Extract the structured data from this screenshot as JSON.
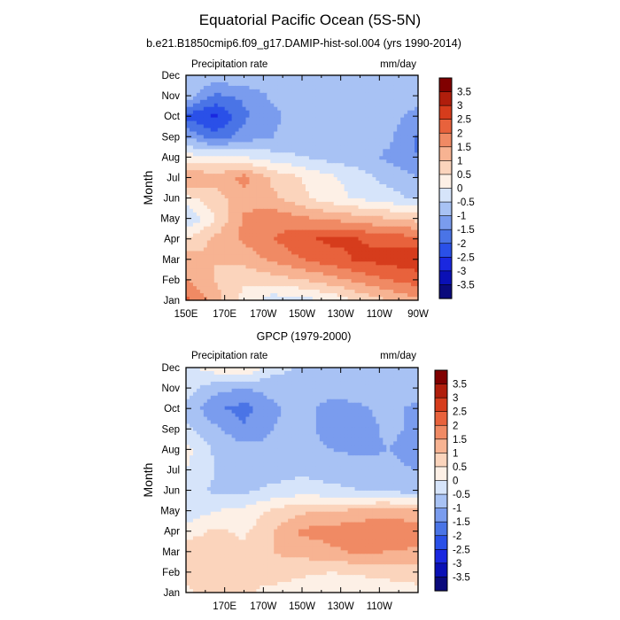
{
  "figure": {
    "title": "Equatorial Pacific Ocean (5S-5N)",
    "colorbar_labels": [
      "3.5",
      "3",
      "2.5",
      "2",
      "1.5",
      "1",
      "0.5",
      "0",
      "-0.5",
      "-1",
      "-1.5",
      "-2",
      "-2.5",
      "-3",
      "-3.5"
    ],
    "palette": {
      "levels": [
        -3.5,
        -3,
        -2.5,
        -2,
        -1.5,
        -1,
        -0.5,
        0,
        0.5,
        1,
        1.5,
        2,
        2.5,
        3,
        3.5
      ],
      "colors": [
        "#0a0a7c",
        "#0a10b5",
        "#1a28e0",
        "#2a50e8",
        "#4a74e6",
        "#7a9cee",
        "#a8c2f4",
        "#d6e4fa",
        "#fdf0e6",
        "#fbd4bc",
        "#f7b392",
        "#f08a64",
        "#e8623c",
        "#d63c1c",
        "#b01e0c",
        "#800000"
      ]
    }
  },
  "chart_data": [
    {
      "type": "heatmap",
      "title": "b.e21.B1850cmip6.f09_g17.DAMIP-hist-sol.004 (yrs 1990-2014)",
      "left_string": "Precipitation rate",
      "right_string": "mm/day",
      "ylabel": "Month",
      "x_tick_labels": [
        "150E",
        "170E",
        "170W",
        "150W",
        "130W",
        "110W",
        "90W"
      ],
      "y_tick_labels": [
        "Jan",
        "Feb",
        "Mar",
        "Apr",
        "May",
        "Jun",
        "Jul",
        "Aug",
        "Sep",
        "Oct",
        "Nov",
        "Dec"
      ],
      "x_longitudes": [
        150,
        165,
        180,
        195,
        210,
        225,
        240,
        255,
        270
      ],
      "values": [
        [
          2.2,
          1.2,
          0.3,
          -0.3,
          -0.2,
          0.1,
          0.6,
          1.0,
          1.4
        ],
        [
          1.5,
          1.0,
          0.6,
          0.8,
          1.0,
          1.3,
          1.7,
          2.0,
          2.3
        ],
        [
          1.2,
          1.0,
          1.2,
          1.6,
          2.0,
          2.3,
          2.6,
          2.7,
          2.8
        ],
        [
          0.6,
          1.1,
          1.6,
          2.0,
          2.4,
          2.6,
          2.5,
          2.3,
          2.2
        ],
        [
          -0.6,
          0.5,
          1.6,
          1.8,
          1.6,
          1.4,
          1.2,
          1.0,
          0.8
        ],
        [
          0.4,
          0.8,
          1.3,
          1.1,
          0.6,
          0.2,
          -0.1,
          -0.3,
          -0.6
        ],
        [
          1.5,
          1.2,
          1.7,
          0.9,
          0.5,
          0.1,
          -0.3,
          -0.7,
          -1.0
        ],
        [
          0.2,
          0.1,
          0.0,
          -0.3,
          -0.5,
          -0.7,
          -0.8,
          -1.1,
          -1.5
        ],
        [
          -1.0,
          -1.8,
          -1.3,
          -1.0,
          -0.8,
          -0.8,
          -0.8,
          -0.9,
          -1.6
        ],
        [
          -2.2,
          -2.6,
          -1.6,
          -1.1,
          -0.8,
          -0.8,
          -0.8,
          -0.8,
          -1.2
        ],
        [
          -0.6,
          -1.6,
          -1.4,
          -0.9,
          -0.7,
          -0.7,
          -0.7,
          -0.7,
          -0.7
        ],
        [
          -0.5,
          -0.7,
          -0.5,
          -0.5,
          -0.6,
          -0.6,
          -0.7,
          -0.7,
          -0.8
        ]
      ]
    },
    {
      "type": "heatmap",
      "title": "GPCP (1979-2000)",
      "left_string": "Precipitation rate",
      "right_string": "mm/day",
      "ylabel": "Month",
      "x_tick_labels": [
        "170E",
        "170W",
        "150W",
        "130W",
        "110W"
      ],
      "y_tick_labels": [
        "Jan",
        "Feb",
        "Mar",
        "Apr",
        "May",
        "Jun",
        "Jul",
        "Aug",
        "Sep",
        "Oct",
        "Nov",
        "Dec"
      ],
      "x_longitudes": [
        150,
        165,
        180,
        195,
        210,
        225,
        240,
        255,
        270
      ],
      "values": [
        [
          0.4,
          0.8,
          0.6,
          0.3,
          0.2,
          0.2,
          0.1,
          0.2,
          0.3
        ],
        [
          0.6,
          1.0,
          0.5,
          0.8,
          0.6,
          0.5,
          0.6,
          0.7,
          0.8
        ],
        [
          0.8,
          1.0,
          0.6,
          1.0,
          1.2,
          1.4,
          1.6,
          1.5,
          1.4
        ],
        [
          0.2,
          0.6,
          0.4,
          1.0,
          1.6,
          1.7,
          1.9,
          2.0,
          1.8
        ],
        [
          -0.4,
          0.0,
          0.1,
          0.6,
          0.9,
          1.0,
          1.1,
          1.2,
          1.1
        ],
        [
          -0.2,
          -0.6,
          -0.6,
          -0.4,
          -0.3,
          -0.4,
          -0.5,
          -0.6,
          -0.8
        ],
        [
          0.0,
          -0.5,
          -0.7,
          -0.7,
          -0.6,
          -0.7,
          -0.8,
          -0.9,
          -1.0
        ],
        [
          0.2,
          -0.6,
          -0.8,
          -0.9,
          -0.9,
          -1.0,
          -1.1,
          -1.0,
          -1.2
        ],
        [
          -0.4,
          -0.9,
          -1.4,
          -1.0,
          -0.8,
          -1.2,
          -1.2,
          -0.9,
          -1.1
        ],
        [
          -0.6,
          -1.4,
          -1.7,
          -1.1,
          -0.8,
          -1.2,
          -1.1,
          -0.8,
          -1.2
        ],
        [
          -0.3,
          -0.8,
          -1.0,
          -0.8,
          -0.7,
          -0.8,
          -0.7,
          -0.6,
          -0.6
        ],
        [
          -0.2,
          0.3,
          0.6,
          -0.3,
          -0.6,
          -0.6,
          -0.6,
          -0.5,
          -0.5
        ]
      ]
    }
  ]
}
